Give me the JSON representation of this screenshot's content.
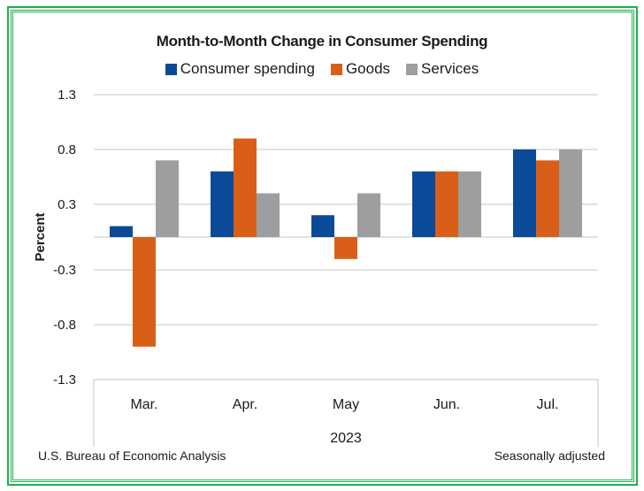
{
  "chart_data": {
    "type": "bar",
    "title": "Month-to-Month Change in Consumer Spending",
    "categories": [
      "Mar.",
      "Apr.",
      "May",
      "Jun.",
      "Jul."
    ],
    "group_label": "2023",
    "series": [
      {
        "name": "Consumer spending",
        "color": "#0a4a98",
        "values": [
          0.1,
          0.6,
          0.2,
          0.6,
          0.8
        ]
      },
      {
        "name": "Goods",
        "color": "#d95f18",
        "values": [
          -1.0,
          0.9,
          -0.2,
          0.6,
          0.7
        ]
      },
      {
        "name": "Services",
        "color": "#9c9e9f",
        "values": [
          0.7,
          0.4,
          0.4,
          0.6,
          0.8
        ]
      }
    ],
    "xlabel": "",
    "ylabel": "Percent",
    "ylim": [
      -1.3,
      1.3
    ],
    "yticks": [
      1.3,
      0.8,
      0.3,
      -0.3,
      -0.8,
      -1.3
    ],
    "ytick_labels": [
      "1.3",
      "0.8",
      "0.3",
      "-0.3",
      "-0.8",
      "-1.3"
    ],
    "grid": true,
    "legend_position": "top-center"
  },
  "footer": {
    "source": "U.S. Bureau of Economic Analysis",
    "note": "Seasonally adjusted"
  },
  "colors": {
    "frame": "#1fb04a",
    "grid": "#d9d9d9"
  }
}
